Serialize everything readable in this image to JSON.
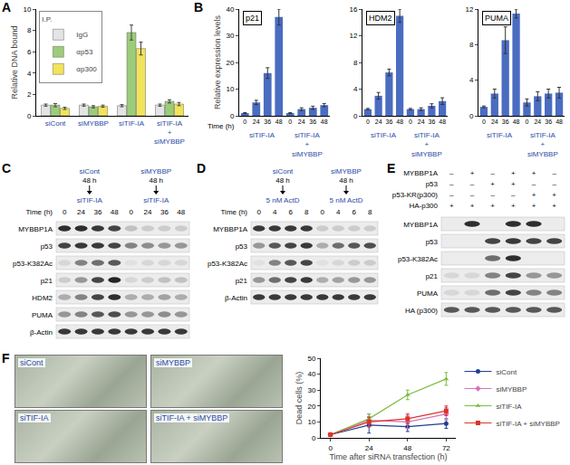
{
  "panel_labels": [
    "A",
    "B",
    "C",
    "D",
    "E",
    "F"
  ],
  "chart_data": [
    {
      "type": "bar",
      "y_label": "Relative DNA bound",
      "legend_title": "I.P.",
      "categories": [
        "siCont",
        "siMYBBP",
        "siTIF-IA",
        "siTIF-IA + siMYBBP"
      ],
      "series": [
        {
          "name": "IgG",
          "color": "#e4e4e4",
          "values": [
            1.0,
            1.0,
            0.95,
            1.0
          ],
          "errors": [
            0.1,
            0.1,
            0.1,
            0.1
          ]
        },
        {
          "name": "αp53",
          "color": "#9ccc7a",
          "values": [
            1.0,
            0.85,
            7.8,
            1.35
          ],
          "errors": [
            0.15,
            0.1,
            0.7,
            0.15
          ]
        },
        {
          "name": "αp300",
          "color": "#f2e35a",
          "values": [
            0.7,
            0.9,
            6.3,
            1.1
          ],
          "errors": [
            0.1,
            0.1,
            0.6,
            0.15
          ]
        }
      ],
      "ylim": [
        0,
        10
      ],
      "yticks": [
        0,
        2,
        4,
        6,
        8,
        10
      ],
      "grid": false,
      "legend": "top left"
    },
    {
      "type": "bar",
      "title": "p21",
      "y_label": "Relative expression levels",
      "x_label": "Time (h)",
      "categories": [
        "0",
        "24",
        "36",
        "48",
        "0",
        "24",
        "36",
        "48"
      ],
      "groups": [
        "siTIF-IA",
        "siTIF-IA + siMYBBP"
      ],
      "values": [
        1,
        5,
        16,
        37,
        1,
        2.5,
        3,
        4
      ],
      "errors": [
        0.2,
        0.8,
        2,
        3,
        0.2,
        0.5,
        0.6,
        0.6
      ],
      "color": "#4a6cc1",
      "ylim": [
        0,
        40
      ],
      "yticks": [
        0,
        10,
        20,
        30,
        40
      ],
      "grid": false
    },
    {
      "type": "bar",
      "title": "HDM2",
      "categories": [
        "0",
        "24",
        "36",
        "48",
        "0",
        "24",
        "36",
        "48"
      ],
      "groups": [
        "siTIF-IA",
        "siTIF-IA + siMYBBP"
      ],
      "values": [
        1,
        3,
        6.5,
        15,
        1,
        1,
        1.5,
        2.2
      ],
      "errors": [
        0.1,
        0.5,
        0.5,
        1.0,
        0.1,
        0.2,
        0.3,
        0.5
      ],
      "color": "#4a6cc1",
      "ylim": [
        0,
        16
      ],
      "yticks": [
        0,
        4,
        8,
        12,
        16
      ],
      "grid": false
    },
    {
      "type": "bar",
      "title": "PUMA",
      "categories": [
        "0",
        "24",
        "36",
        "48",
        "0",
        "24",
        "36",
        "48"
      ],
      "groups": [
        "siTIF-IA",
        "siTIF-IA + siMYBBP"
      ],
      "values": [
        1,
        2.5,
        8.5,
        11.5,
        1.5,
        2.2,
        2.5,
        2.6
      ],
      "errors": [
        0.1,
        0.5,
        1.5,
        0.5,
        0.4,
        0.5,
        0.5,
        0.6
      ],
      "color": "#4a6cc1",
      "ylim": [
        0,
        12
      ],
      "yticks": [
        0,
        4,
        8,
        12
      ],
      "grid": false
    },
    {
      "type": "line",
      "x_label": "Time after siRNA transfection (h)",
      "y_label": "Dead cells (%)",
      "x": [
        0,
        24,
        48,
        72
      ],
      "series": [
        {
          "name": "siCont",
          "color": "#1f3f8f",
          "marker": "circle",
          "values": [
            2,
            8,
            7,
            9
          ],
          "errors": [
            1,
            5,
            3,
            3
          ]
        },
        {
          "name": "siMYBBP",
          "color": "#d873b8",
          "marker": "diamond",
          "values": [
            2,
            11,
            10,
            15
          ],
          "errors": [
            1,
            4,
            4,
            4
          ]
        },
        {
          "name": "siTIF-IA",
          "color": "#7dbb42",
          "marker": "triangle-up",
          "values": [
            2,
            12,
            27,
            37
          ],
          "errors": [
            1,
            3,
            3,
            4
          ]
        },
        {
          "name": "siTIF-IA + siMYBBP",
          "color": "#d9342b",
          "marker": "square",
          "values": [
            2,
            10,
            12,
            17
          ],
          "errors": [
            1,
            3,
            3,
            3
          ]
        }
      ],
      "xlim": [
        -6,
        78
      ],
      "xticks": [
        0,
        24,
        48,
        72
      ],
      "ylim": [
        0,
        50
      ],
      "yticks": [
        0,
        10,
        20,
        30,
        40,
        50
      ],
      "grid": false,
      "legend": "right"
    }
  ],
  "blots": {
    "C": {
      "time_label": "Time (h)",
      "groups": [
        {
          "label": "siCont",
          "time": "48 h",
          "treatment": "siTIF-IA",
          "lanes": [
            "0",
            "24",
            "36",
            "48"
          ]
        },
        {
          "label": "siMYBBP",
          "time": "48 h",
          "treatment": "siTIF-IA",
          "lanes": [
            "0",
            "24",
            "36",
            "48"
          ]
        }
      ],
      "rows": [
        {
          "name": "MYBBP1A",
          "bands": [
            0.9,
            0.9,
            0.85,
            0.8,
            0.2,
            0.15,
            0.15,
            0.15
          ]
        },
        {
          "name": "p53",
          "bands": [
            0.8,
            0.85,
            0.85,
            0.8,
            0.5,
            0.45,
            0.4,
            0.4
          ]
        },
        {
          "name": "p53-K382Ac",
          "bands": [
            0.1,
            0.5,
            0.6,
            0.7,
            0.05,
            0.1,
            0.1,
            0.1
          ]
        },
        {
          "name": "p21",
          "bands": [
            0.15,
            0.4,
            0.8,
            0.95,
            0.1,
            0.15,
            0.2,
            0.2
          ]
        },
        {
          "name": "HDM2",
          "bands": [
            0.3,
            0.5,
            0.8,
            0.9,
            0.3,
            0.3,
            0.35,
            0.3
          ]
        },
        {
          "name": "PUMA",
          "bands": [
            0.4,
            0.5,
            0.7,
            0.75,
            0.4,
            0.4,
            0.45,
            0.4
          ]
        },
        {
          "name": "β-Actin",
          "bands": [
            0.85,
            0.85,
            0.85,
            0.85,
            0.85,
            0.85,
            0.85,
            0.85
          ]
        }
      ]
    },
    "D": {
      "time_label": "Time (h)",
      "groups": [
        {
          "label": "siCont",
          "time": "48 h",
          "treatment": "5 nM ActD",
          "lanes": [
            "0",
            "4",
            "6",
            "8"
          ]
        },
        {
          "label": "siMYBBP",
          "time": "48 h",
          "treatment": "5 nM ActD",
          "lanes": [
            "0",
            "4",
            "6",
            "8"
          ]
        }
      ],
      "rows": [
        {
          "name": "MYBBP1A",
          "bands": [
            0.85,
            0.85,
            0.85,
            0.85,
            0.15,
            0.15,
            0.15,
            0.15
          ]
        },
        {
          "name": "p53",
          "bands": [
            0.4,
            0.7,
            0.8,
            0.85,
            0.3,
            0.6,
            0.7,
            0.75
          ]
        },
        {
          "name": "p53-K382Ac",
          "bands": [
            0.05,
            0.5,
            0.7,
            0.8,
            0.05,
            0.1,
            0.15,
            0.15
          ]
        },
        {
          "name": "p21",
          "bands": [
            0.4,
            0.6,
            0.8,
            0.85,
            0.3,
            0.35,
            0.4,
            0.4
          ]
        },
        {
          "name": "β-Actin",
          "bands": [
            0.85,
            0.85,
            0.85,
            0.85,
            0.85,
            0.85,
            0.85,
            0.85
          ]
        }
      ]
    },
    "E": {
      "conditions": [
        {
          "name": "MYBBP1A",
          "signs": [
            "–",
            "+",
            "–",
            "+",
            "+",
            "–"
          ]
        },
        {
          "name": "p53",
          "signs": [
            "–",
            "–",
            "+",
            "+",
            "–",
            "–"
          ]
        },
        {
          "name": "p53-KR(p300)",
          "signs": [
            "–",
            "–",
            "–",
            "–",
            "+",
            "+"
          ]
        },
        {
          "name": "HA-p300",
          "signs": [
            "+",
            "+",
            "+",
            "+",
            "+",
            "+"
          ]
        }
      ],
      "rows": [
        {
          "name": "MYBBP1A",
          "bands": [
            0,
            0.9,
            0,
            0.9,
            0.9,
            0
          ]
        },
        {
          "name": "p53",
          "bands": [
            0,
            0,
            0.8,
            0.85,
            0.8,
            0.8
          ]
        },
        {
          "name": "p53-K382Ac",
          "bands": [
            0,
            0,
            0.6,
            0.9,
            0,
            0
          ]
        },
        {
          "name": "p21",
          "bands": [
            0.1,
            0.1,
            0.5,
            0.8,
            0.4,
            0.4
          ]
        },
        {
          "name": "PUMA",
          "bands": [
            0.1,
            0.1,
            0.6,
            0.8,
            0.5,
            0.5
          ]
        },
        {
          "name": "HA (p300)",
          "bands": [
            0.7,
            0.7,
            0.7,
            0.7,
            0.7,
            0.7
          ]
        }
      ]
    }
  },
  "micrographs": [
    "siCont",
    "siMYBBP",
    "siTIF-IA",
    "siTIF-IA + siMYBBP"
  ]
}
